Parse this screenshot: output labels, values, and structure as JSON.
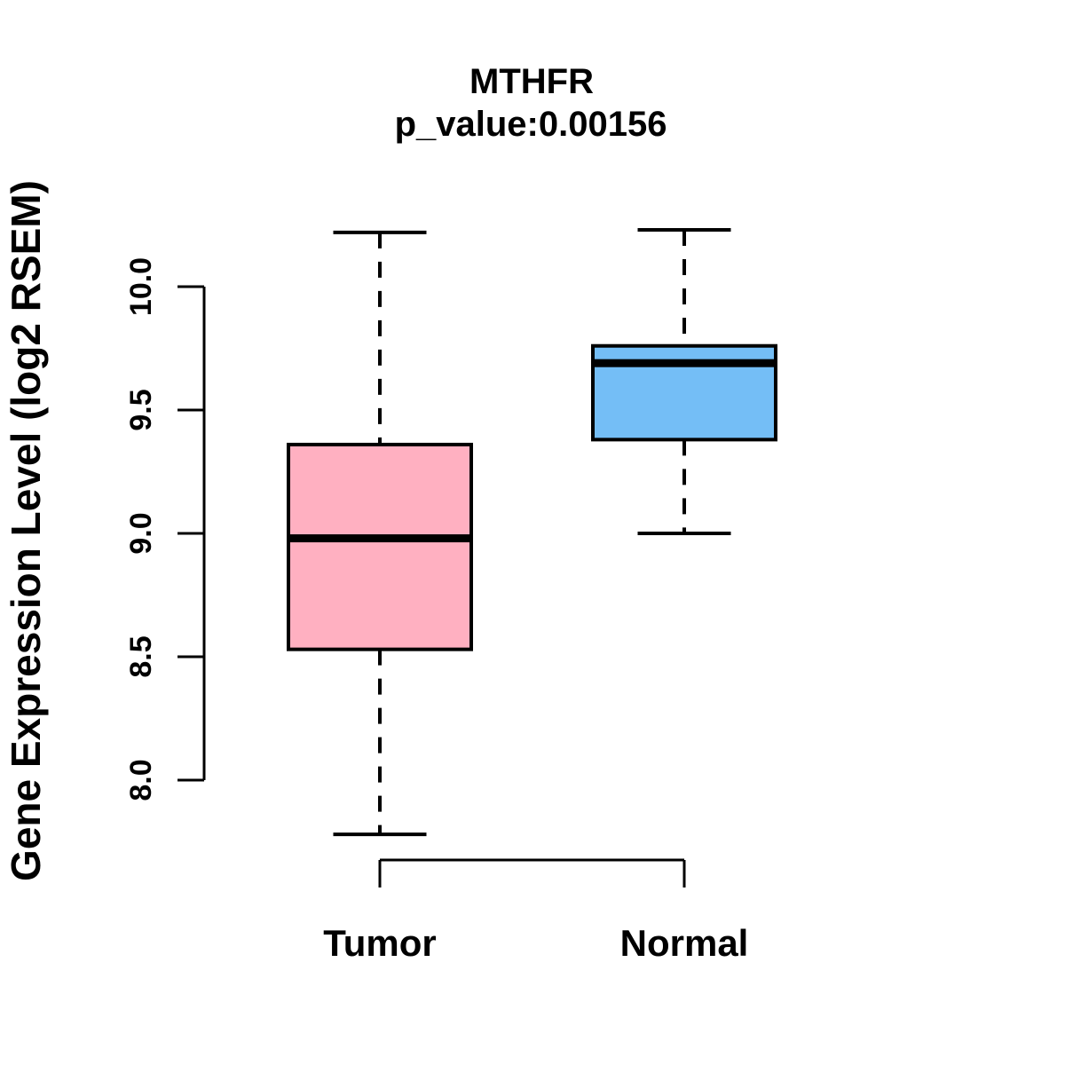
{
  "chart_data": {
    "type": "boxplot",
    "title": "MTHFR",
    "subtitle": "p_value:0.00156",
    "p_value": "0.00156",
    "ylabel": "Gene Expression Level (log2 RSEM)",
    "xlabel": "",
    "categories": [
      "Tumor",
      "Normal"
    ],
    "series": [
      {
        "name": "Tumor",
        "fill_color": "#FFB0C1",
        "whisker_low": 7.78,
        "q1": 8.53,
        "median": 8.98,
        "q3": 9.36,
        "whisker_high": 10.22,
        "outliers": []
      },
      {
        "name": "Normal",
        "fill_color": "#74BEF6",
        "whisker_low": 9.0,
        "q1": 9.38,
        "median": 9.69,
        "q3": 9.76,
        "whisker_high": 10.23,
        "outliers": []
      }
    ],
    "y_ticks": [
      "8.0",
      "8.5",
      "9.0",
      "9.5",
      "10.0"
    ],
    "ylim": [
      7.7,
      10.3
    ],
    "grid": false,
    "legend_position": "none",
    "stroke_color": "#000000",
    "background": "#FFFFFF"
  }
}
